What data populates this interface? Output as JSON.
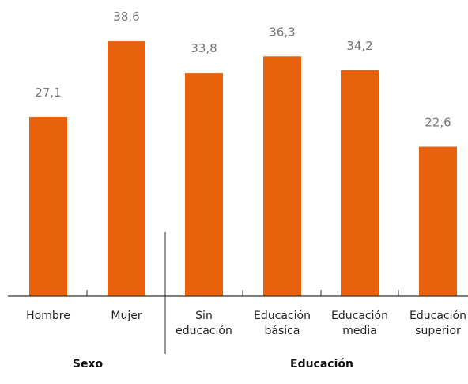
{
  "chart_data": {
    "type": "bar",
    "categories": [
      [
        "Hombre"
      ],
      [
        "Mujer"
      ],
      [
        "Sin",
        "educación"
      ],
      [
        "Educación",
        "básica"
      ],
      [
        "Educación",
        "media"
      ],
      [
        "Educación",
        "superior"
      ]
    ],
    "values": [
      27.1,
      38.6,
      33.8,
      36.3,
      34.2,
      22.6
    ],
    "value_labels": [
      "27,1",
      "38,6",
      "33,8",
      "36,3",
      "34,2",
      "22,6"
    ],
    "groups": [
      {
        "name": "Sexo",
        "categories": [
          0,
          1
        ]
      },
      {
        "name": "Educación",
        "categories": [
          2,
          3,
          4,
          5
        ]
      }
    ],
    "title": "",
    "xlabel": "",
    "ylabel": "",
    "ylim": [
      0,
      40
    ],
    "grid": false,
    "legend": "none",
    "bar_color": "#E8620E",
    "axis_color": "#333333"
  }
}
